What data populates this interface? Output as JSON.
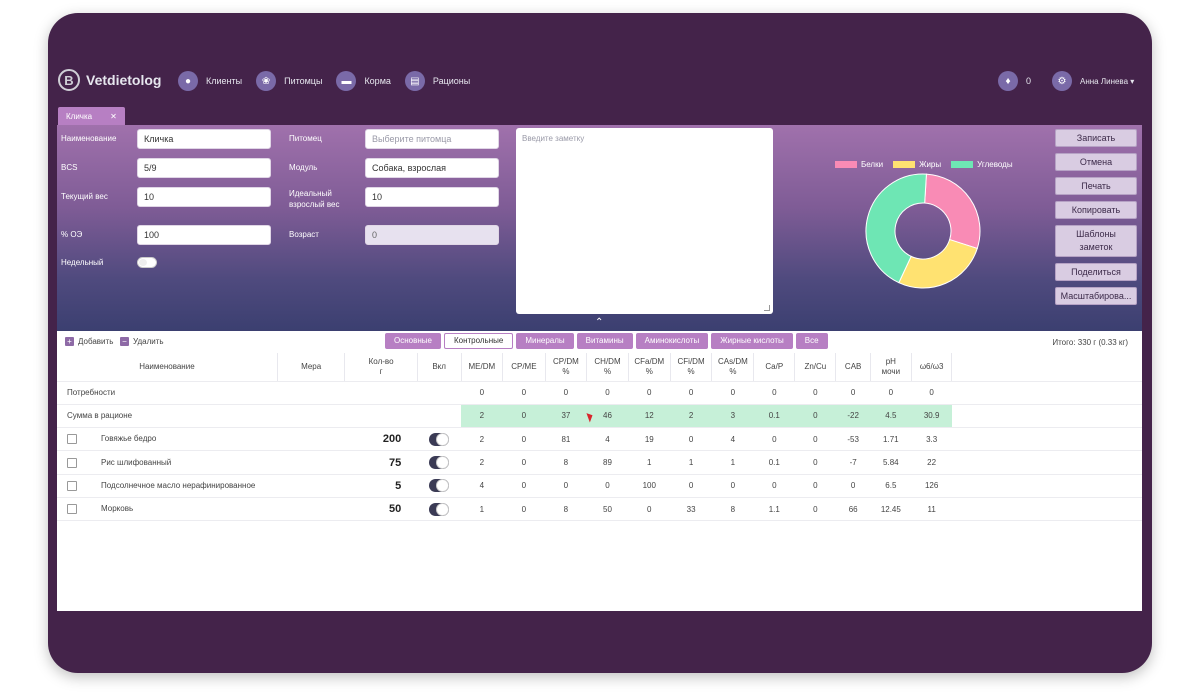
{
  "app": {
    "logo_letter": "B",
    "name": "Vetdietolog"
  },
  "nav": [
    {
      "label": "Клиенты",
      "icon": "user-icon"
    },
    {
      "label": "Питомцы",
      "icon": "paw-icon"
    },
    {
      "label": "Корма",
      "icon": "bowl-icon"
    },
    {
      "label": "Рационы",
      "icon": "clipboard-icon"
    }
  ],
  "notifications": {
    "count": "0"
  },
  "user": {
    "name": "Анна Линева ▾"
  },
  "doc_tab": {
    "label": "Кличка",
    "close": "✕"
  },
  "form": {
    "name_label": "Наименование",
    "name_value": "Кличка",
    "bcs_label": "BCS",
    "bcs_value": "5/9",
    "weight_label": "Текущий вес",
    "weight_value": "10",
    "oe_label": "% ОЭ",
    "oe_value": "100",
    "weekly_label": "Недельный",
    "pet_label": "Питомец",
    "pet_placeholder": "Выберите питомца",
    "module_label": "Модуль",
    "module_value": "Собака, взрослая",
    "ideal_label_1": "Идеальный",
    "ideal_label_2": "взрослый вес",
    "ideal_value": "10",
    "age_label": "Возраст",
    "age_value": "0",
    "note_placeholder": "Введите заметку"
  },
  "chart_data": {
    "type": "pie",
    "categories": [
      "Белки",
      "Жиры",
      "Углеводы"
    ],
    "values": [
      29,
      27,
      44
    ],
    "colors": [
      "#f98bb5",
      "#ffe271",
      "#6ee6b4"
    ],
    "legend": "top"
  },
  "buttons": {
    "save": "Записать",
    "cancel": "Отмена",
    "print": "Печать",
    "copy": "Копировать",
    "templates_1": "Шаблоны",
    "templates_2": "заметок",
    "share": "Поделиться",
    "scale": "Масштабирова..."
  },
  "collapse_glyph": "⌃",
  "toolbar": {
    "add": "Добавить",
    "remove": "Удалить",
    "total": "Итого: 330 г (0.33 кг)"
  },
  "tabs": [
    {
      "label": "Основные",
      "active": false
    },
    {
      "label": "Контрольные",
      "active": true
    },
    {
      "label": "Минералы",
      "active": false
    },
    {
      "label": "Витамины",
      "active": false
    },
    {
      "label": "Аминокислоты",
      "active": false
    },
    {
      "label": "Жирные кислоты",
      "active": false
    },
    {
      "label": "Все",
      "active": false
    }
  ],
  "table": {
    "headers": {
      "name": "Наименование",
      "measure": "Мера",
      "qty_1": "Кол-во",
      "qty_2": "г",
      "incl": "Вкл",
      "me_dm": "ME/DM",
      "cp_me": "CP/ME",
      "cp_dm_1": "CP/DM",
      "cp_dm_2": "%",
      "ch_dm_1": "CH/DM",
      "ch_dm_2": "%",
      "cfa_dm_1": "CFa/DM",
      "cfa_dm_2": "%",
      "cfi_dm_1": "CFi/DM",
      "cfi_dm_2": "%",
      "cas_dm_1": "CAs/DM",
      "cas_dm_2": "%",
      "ca_p": "Ca/P",
      "zn_cu": "Zn/Cu",
      "cab": "CAB",
      "ph_1": "pH",
      "ph_2": "мочи",
      "w63": "ω6/ω3"
    },
    "needs": {
      "label": "Потребности",
      "vals": [
        "0",
        "0",
        "0",
        "0",
        "0",
        "0",
        "0",
        "0",
        "0",
        "0",
        "0",
        "0"
      ]
    },
    "sum": {
      "label": "Сумма в рационе",
      "vals": [
        "2",
        "0",
        "37",
        "46",
        "12",
        "2",
        "3",
        "0.1",
        "0",
        "-22",
        "4.5",
        "30.9"
      ]
    },
    "rows": [
      {
        "name": "Говяжье бедро",
        "qty": "200",
        "vals": [
          "2",
          "0",
          "81",
          "4",
          "19",
          "0",
          "4",
          "0",
          "0",
          "-53",
          "1.71",
          "3.3"
        ]
      },
      {
        "name": "Рис шлифованный",
        "qty": "75",
        "vals": [
          "2",
          "0",
          "8",
          "89",
          "1",
          "1",
          "1",
          "0.1",
          "0",
          "-7",
          "5.84",
          "22"
        ]
      },
      {
        "name": "Подсолнечное масло нерафинированное",
        "qty": "5",
        "vals": [
          "4",
          "0",
          "0",
          "0",
          "100",
          "0",
          "0",
          "0",
          "0",
          "0",
          "6.5",
          "126"
        ]
      },
      {
        "name": "Морковь",
        "qty": "50",
        "vals": [
          "1",
          "0",
          "8",
          "50",
          "0",
          "33",
          "8",
          "1.1",
          "0",
          "66",
          "12.45",
          "11"
        ]
      }
    ]
  }
}
